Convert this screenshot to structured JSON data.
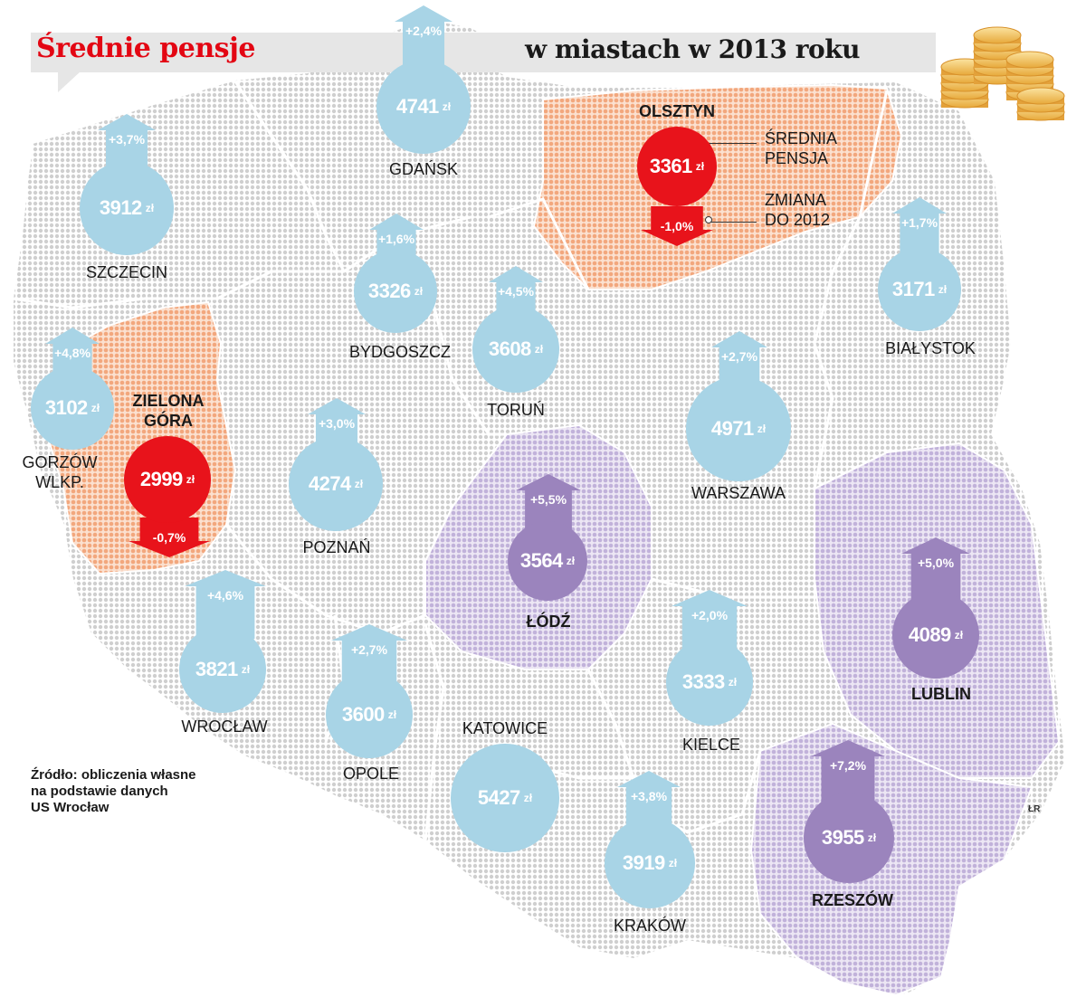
{
  "header": {
    "title_left": "Średnie pensje",
    "title_right": "w miastach w 2013 roku"
  },
  "legend": {
    "salary": "ŚREDNIA\nPENSJA",
    "change": "ZMIANA\nDO 2012"
  },
  "currency": "zł",
  "cities": [
    {
      "id": "gdansk",
      "name": "GDAŃSK",
      "salary": "4741",
      "change": "+2,4%",
      "color": "blue",
      "bold": false
    },
    {
      "id": "szczecin",
      "name": "SZCZECIN",
      "salary": "3912",
      "change": "+3,7%",
      "color": "blue",
      "bold": false
    },
    {
      "id": "olsztyn",
      "name": "OLSZTYN",
      "salary": "3361",
      "change": "-1,0%",
      "color": "red",
      "bold": true
    },
    {
      "id": "bydgoszcz",
      "name": "BYDGOSZCZ",
      "salary": "3326",
      "change": "+1,6%",
      "color": "blue",
      "bold": false
    },
    {
      "id": "torun",
      "name": "TORUŃ",
      "salary": "3608",
      "change": "+4,5%",
      "color": "blue",
      "bold": false
    },
    {
      "id": "bialystok",
      "name": "BIAŁYSTOK",
      "salary": "3171",
      "change": "+1,7%",
      "color": "blue",
      "bold": false
    },
    {
      "id": "gorzow",
      "name": "GORZÓW\nWLKP.",
      "salary": "3102",
      "change": "+4,8%",
      "color": "blue",
      "bold": false
    },
    {
      "id": "zielona",
      "name": "ZIELONA\nGÓRA",
      "salary": "2999",
      "change": "-0,7%",
      "color": "red",
      "bold": true
    },
    {
      "id": "poznan",
      "name": "POZNAŃ",
      "salary": "4274",
      "change": "+3,0%",
      "color": "blue",
      "bold": false
    },
    {
      "id": "warszawa",
      "name": "WARSZAWA",
      "salary": "4971",
      "change": "+2,7%",
      "color": "blue",
      "bold": false
    },
    {
      "id": "lodz",
      "name": "ŁÓDŹ",
      "salary": "3564",
      "change": "+5,5%",
      "color": "purple",
      "bold": true
    },
    {
      "id": "lublin",
      "name": "LUBLIN",
      "salary": "4089",
      "change": "+5,0%",
      "color": "purple",
      "bold": true
    },
    {
      "id": "wroclaw",
      "name": "WROCŁAW",
      "salary": "3821",
      "change": "+4,6%",
      "color": "blue",
      "bold": false
    },
    {
      "id": "opole",
      "name": "OPOLE",
      "salary": "3600",
      "change": "+2,7%",
      "color": "blue",
      "bold": false
    },
    {
      "id": "kielce",
      "name": "KIELCE",
      "salary": "3333",
      "change": "+2,0%",
      "color": "blue",
      "bold": false
    },
    {
      "id": "katowice",
      "name": "KATOWICE",
      "salary": "5427",
      "change": "",
      "color": "blue",
      "bold": false
    },
    {
      "id": "krakow",
      "name": "KRAKÓW",
      "salary": "3919",
      "change": "+3,8%",
      "color": "blue",
      "bold": false
    },
    {
      "id": "rzeszow",
      "name": "RZESZÓW",
      "salary": "3955",
      "change": "+7,2%",
      "color": "purple",
      "bold": true
    }
  ],
  "source": "Źródło: obliczenia własne\nna podstawie danych\nUS Wrocław",
  "credit": "ŁR",
  "colors": {
    "increase_circle": "#a8d4e6",
    "decrease_circle": "#e8131b",
    "highlight_circle": "#9b84bd",
    "map_grey": "#d9d9d9",
    "region_orange": "#f3b48f",
    "region_purple": "#cfc3e3"
  }
}
